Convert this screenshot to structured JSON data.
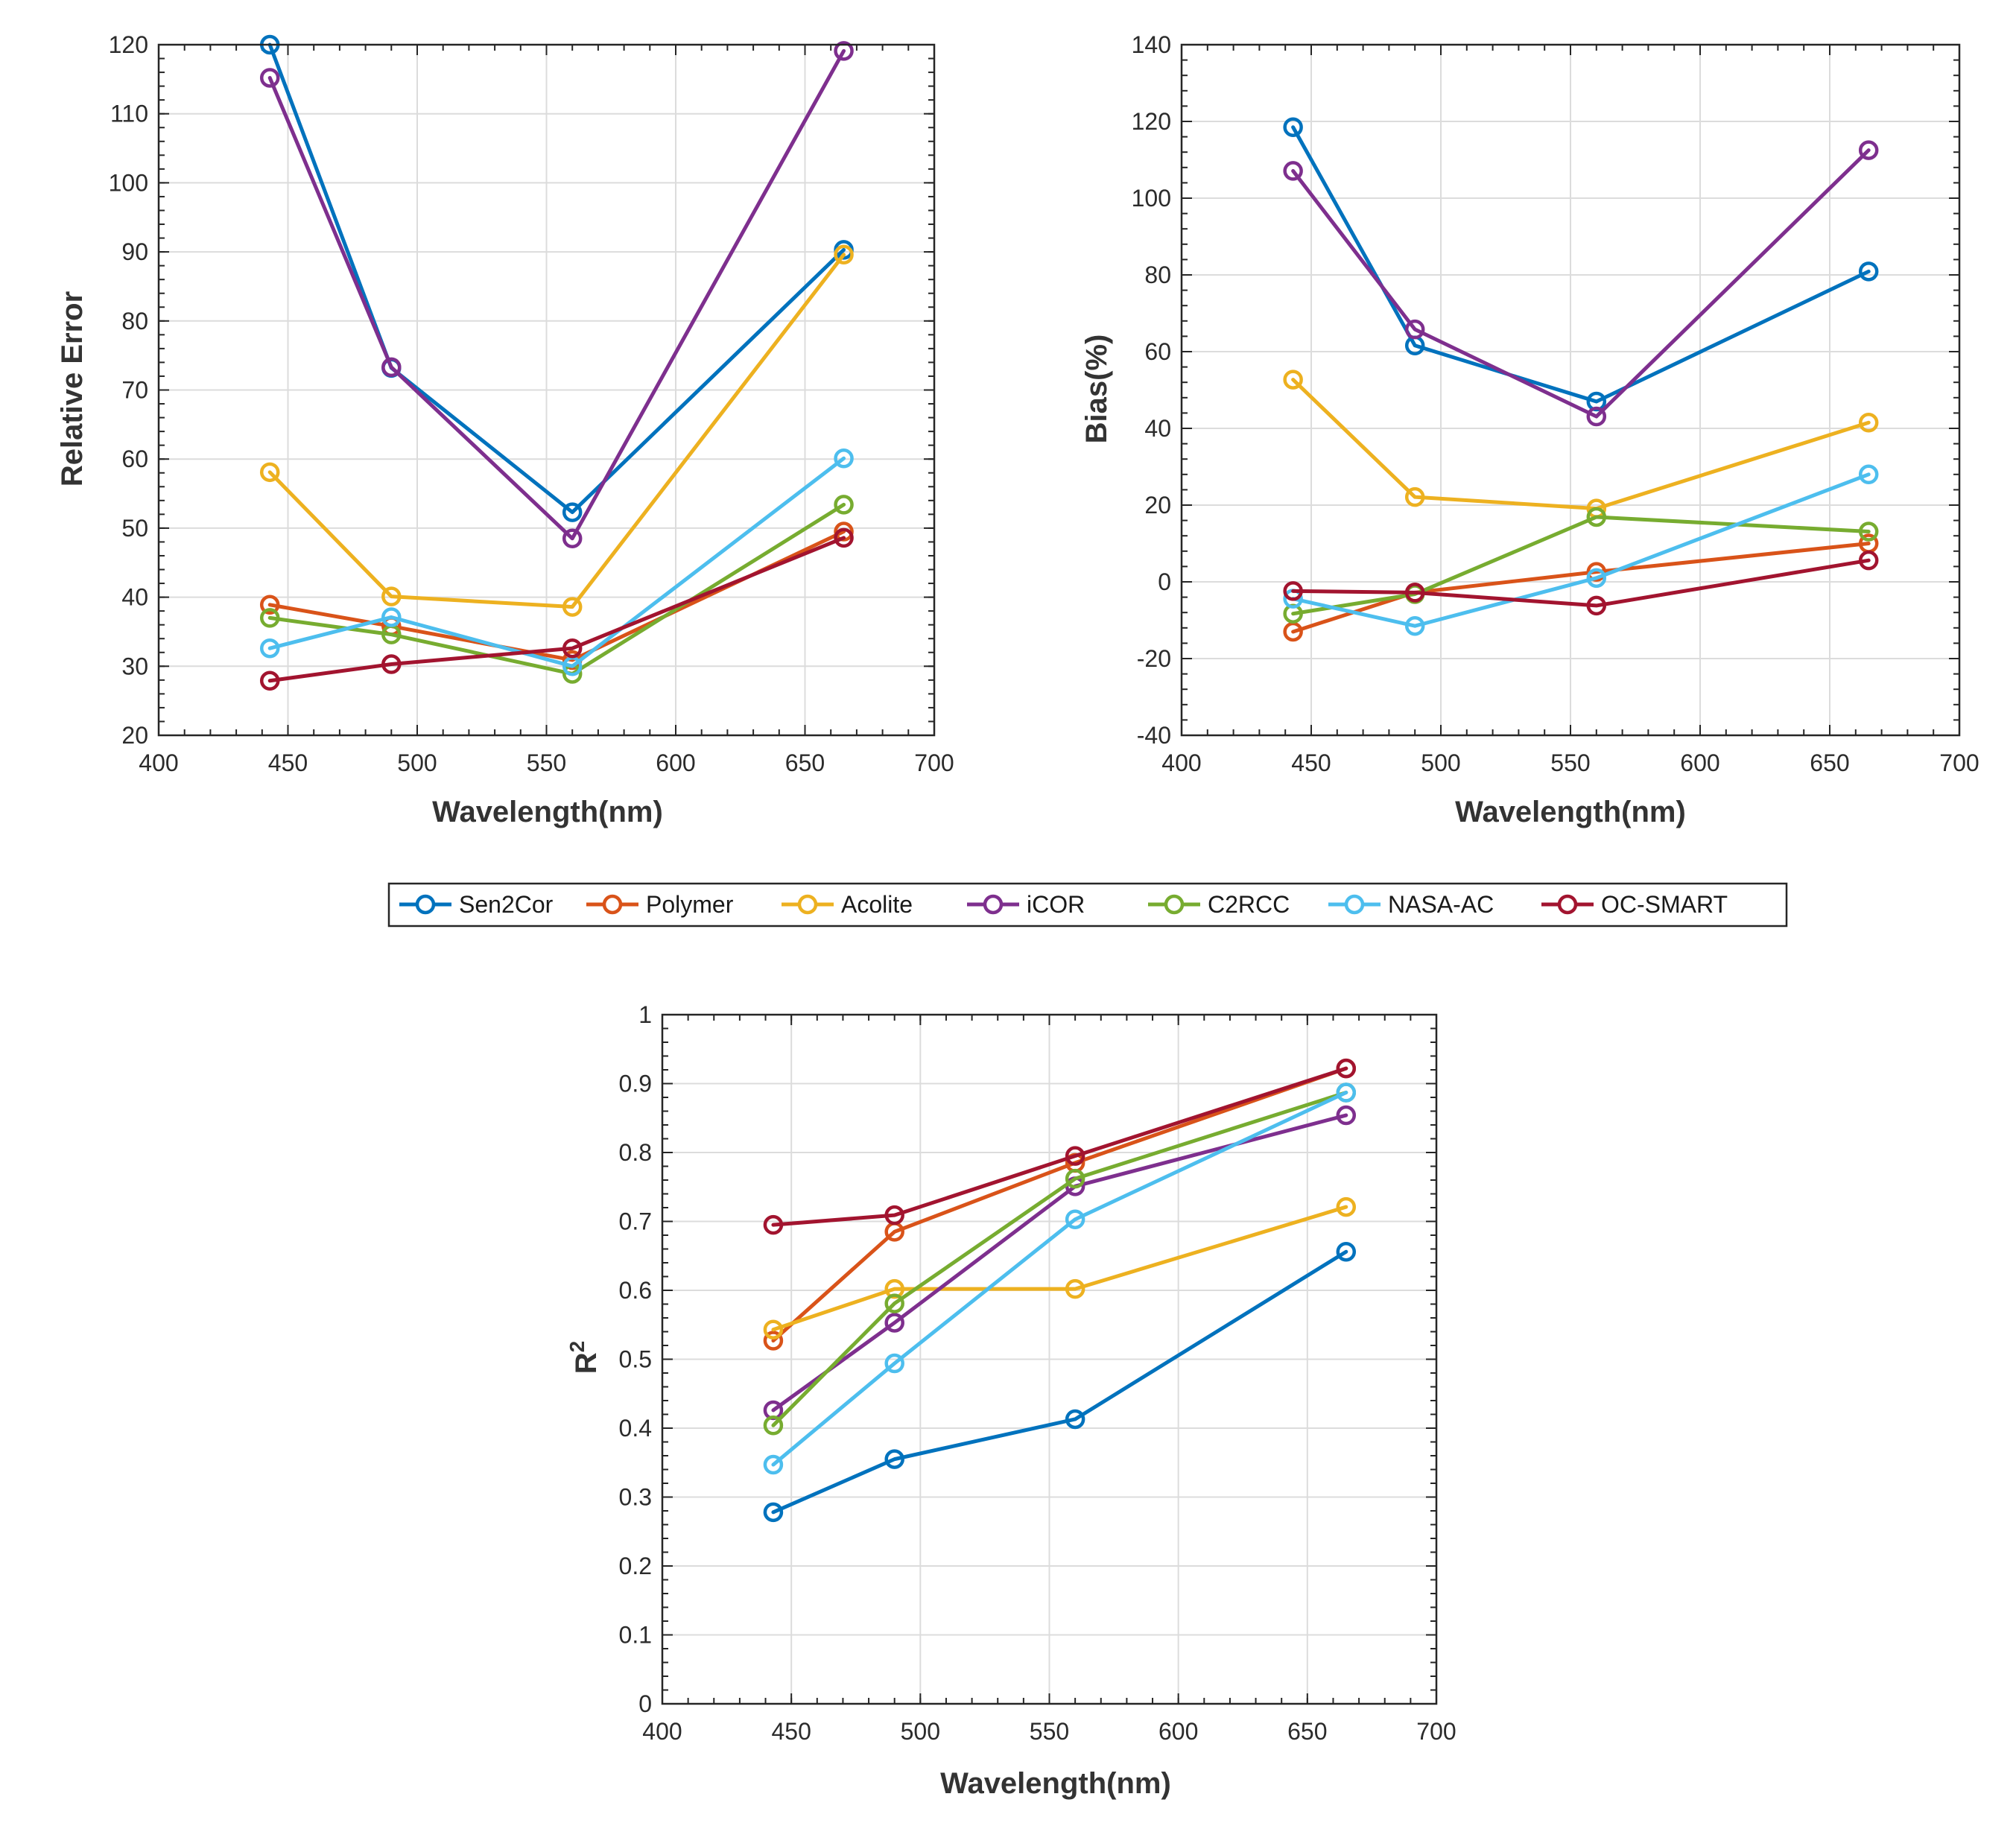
{
  "chart_data": [
    {
      "type": "line",
      "title": "",
      "xlabel": "Wavelength(nm)",
      "ylabel": "Relative Error",
      "xlim": [
        400,
        700
      ],
      "ylim": [
        20,
        120
      ],
      "xticks": [
        400,
        450,
        500,
        550,
        600,
        650,
        700
      ],
      "yticks": [
        20,
        30,
        40,
        50,
        60,
        70,
        80,
        90,
        100,
        110,
        120
      ],
      "grid": true,
      "x": [
        443,
        490,
        560,
        665
      ],
      "series": [
        {
          "name": "Sen2Cor",
          "color": "#0072BD",
          "values": [
            120,
            73.2,
            52.3,
            90.3
          ]
        },
        {
          "name": "Polymer",
          "color": "#D95319",
          "values": [
            38.9,
            35.8,
            30.9,
            49.5
          ]
        },
        {
          "name": "Acolite",
          "color": "#EDB120",
          "values": [
            58.1,
            40.1,
            38.6,
            89.6
          ]
        },
        {
          "name": "iCOR",
          "color": "#7E2F8E",
          "values": [
            115.2,
            73.3,
            48.5,
            119.1
          ]
        },
        {
          "name": "C2RCC",
          "color": "#77AC30",
          "values": [
            37.0,
            34.6,
            28.9,
            53.4
          ]
        },
        {
          "name": "NASA-AC",
          "color": "#4DBEEE",
          "values": [
            32.6,
            37.1,
            30.0,
            60.1
          ]
        },
        {
          "name": "OC-SMART",
          "color": "#A2142F",
          "values": [
            27.9,
            30.3,
            32.6,
            48.6
          ]
        }
      ]
    },
    {
      "type": "line",
      "title": "",
      "xlabel": "Wavelength(nm)",
      "ylabel": "Bias(%)",
      "xlim": [
        400,
        700
      ],
      "ylim": [
        -40,
        140
      ],
      "xticks": [
        400,
        450,
        500,
        550,
        600,
        650,
        700
      ],
      "yticks": [
        -40,
        -20,
        0,
        20,
        40,
        60,
        80,
        100,
        120,
        140
      ],
      "grid": true,
      "x": [
        443,
        490,
        560,
        665
      ],
      "series": [
        {
          "name": "Sen2Cor",
          "color": "#0072BD",
          "values": [
            118.5,
            61.6,
            47.0,
            80.9
          ]
        },
        {
          "name": "Polymer",
          "color": "#D95319",
          "values": [
            -13.0,
            -2.8,
            2.6,
            10.0
          ]
        },
        {
          "name": "Acolite",
          "color": "#EDB120",
          "values": [
            52.7,
            22.1,
            19.1,
            41.5
          ]
        },
        {
          "name": "iCOR",
          "color": "#7E2F8E",
          "values": [
            107.1,
            65.8,
            43.1,
            112.5
          ]
        },
        {
          "name": "C2RCC",
          "color": "#77AC30",
          "values": [
            -8.3,
            -3.2,
            16.9,
            13.1
          ]
        },
        {
          "name": "NASA-AC",
          "color": "#4DBEEE",
          "values": [
            -4.4,
            -11.5,
            1.0,
            28.0
          ]
        },
        {
          "name": "OC-SMART",
          "color": "#A2142F",
          "values": [
            -2.4,
            -2.8,
            -6.2,
            5.6
          ]
        }
      ]
    },
    {
      "type": "line",
      "title": "",
      "xlabel": "Wavelength(nm)",
      "ylabel": "R",
      "ylabel_superscript": "2",
      "xlim": [
        400,
        700
      ],
      "ylim": [
        0,
        1
      ],
      "xticks": [
        400,
        450,
        500,
        550,
        600,
        650,
        700
      ],
      "yticks": [
        0,
        0.1,
        0.2,
        0.3,
        0.4,
        0.5,
        0.6,
        0.7,
        0.8,
        0.9,
        1
      ],
      "grid": true,
      "x": [
        443,
        490,
        560,
        665
      ],
      "series": [
        {
          "name": "Sen2Cor",
          "color": "#0072BD",
          "values": [
            0.278,
            0.355,
            0.413,
            0.656
          ]
        },
        {
          "name": "Polymer",
          "color": "#D95319",
          "values": [
            0.527,
            0.685,
            0.785,
            0.922
          ]
        },
        {
          "name": "Acolite",
          "color": "#EDB120",
          "values": [
            0.543,
            0.602,
            0.602,
            0.721
          ]
        },
        {
          "name": "iCOR",
          "color": "#7E2F8E",
          "values": [
            0.426,
            0.553,
            0.751,
            0.854
          ]
        },
        {
          "name": "C2RCC",
          "color": "#77AC30",
          "values": [
            0.404,
            0.581,
            0.762,
            0.887
          ]
        },
        {
          "name": "NASA-AC",
          "color": "#4DBEEE",
          "values": [
            0.347,
            0.494,
            0.703,
            0.887
          ]
        },
        {
          "name": "OC-SMART",
          "color": "#A2142F",
          "values": [
            0.695,
            0.709,
            0.795,
            0.922
          ]
        }
      ]
    }
  ],
  "legend": {
    "placement": "center",
    "entries": [
      {
        "name": "Sen2Cor",
        "color": "#0072BD"
      },
      {
        "name": "Polymer",
        "color": "#D95319"
      },
      {
        "name": "Acolite",
        "color": "#EDB120"
      },
      {
        "name": "iCOR",
        "color": "#7E2F8E"
      },
      {
        "name": "C2RCC",
        "color": "#77AC30"
      },
      {
        "name": "NASA-AC",
        "color": "#4DBEEE"
      },
      {
        "name": "OC-SMART",
        "color": "#A2142F"
      }
    ]
  }
}
